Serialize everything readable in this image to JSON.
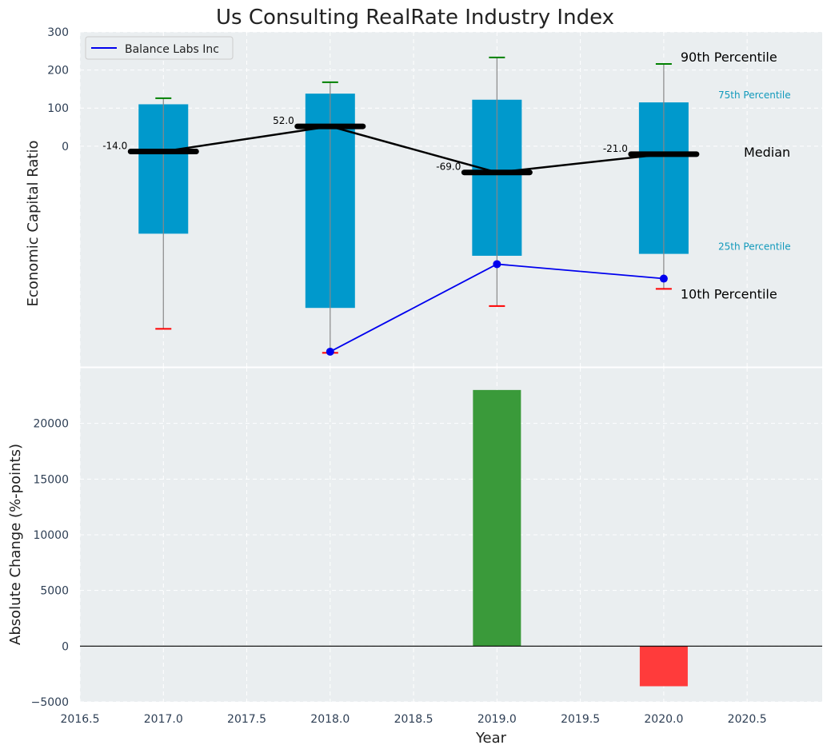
{
  "chart_data": [
    {
      "type": "box",
      "title": "Us Consulting RealRate Industry Index",
      "ylabel": "Economic Capital Ratio",
      "ylim": [
        -580,
        300
      ],
      "y_ticks": [
        0,
        100,
        200,
        300
      ],
      "x_categories": [
        2017,
        2018,
        2019,
        2020
      ],
      "grid": true,
      "boxes": [
        {
          "x": 2017,
          "p10": -480,
          "p25": -230,
          "median": -14.0,
          "p75": 110,
          "p90": 126
        },
        {
          "x": 2018,
          "p10": -543,
          "p25": -425,
          "median": 52.0,
          "p75": 138,
          "p90": 168
        },
        {
          "x": 2019,
          "p10": -420,
          "p25": -288,
          "median": -69.0,
          "p75": 122,
          "p90": 233
        },
        {
          "x": 2020,
          "p10": -375,
          "p25": -283,
          "median": -21.0,
          "p75": 115,
          "p90": 216
        }
      ],
      "median_labels": [
        "-14.0",
        "52.0",
        "-69.0",
        "-21.0"
      ],
      "series": [
        {
          "name": "Balance Labs Inc",
          "color": "#0000ee",
          "x": [
            2018,
            2019,
            2020
          ],
          "values": [
            -540,
            -310,
            -348
          ]
        }
      ],
      "legend": {
        "position": "top-left",
        "entries": [
          "Balance Labs Inc"
        ]
      },
      "annotations": {
        "p90": "90th Percentile",
        "p75": "75th Percentile",
        "median": "Median",
        "p25": "25th Percentile",
        "p10": "10th Percentile"
      },
      "colors": {
        "box": "#0099cc",
        "median": "#000000",
        "whisker_top": "#008000",
        "whisker_bottom": "#ff0000",
        "label_small": "#1199bb"
      }
    },
    {
      "type": "bar",
      "ylabel": "Absolute Change (%-points)",
      "xlabel": "Year",
      "ylim": [
        -5000,
        25000
      ],
      "y_ticks": [
        -5000,
        0,
        5000,
        10000,
        15000,
        20000
      ],
      "y_tick_labels": [
        "−5000",
        "0",
        "5000",
        "10000",
        "15000",
        "20000"
      ],
      "xlim": [
        2016.5,
        2020.95
      ],
      "x_ticks": [
        2016.5,
        2017.0,
        2017.5,
        2018.0,
        2018.5,
        2019.0,
        2019.5,
        2020.0,
        2020.5
      ],
      "x_tick_labels": [
        "2016.5",
        "2017.0",
        "2017.5",
        "2018.0",
        "2018.5",
        "2019.0",
        "2019.5",
        "2020.0",
        "2020.5"
      ],
      "grid": true,
      "bars": [
        {
          "x": 2019,
          "value": 23000,
          "color": "#3a9a3a"
        },
        {
          "x": 2020,
          "value": -3600,
          "color": "#ff3b3b"
        }
      ]
    }
  ]
}
